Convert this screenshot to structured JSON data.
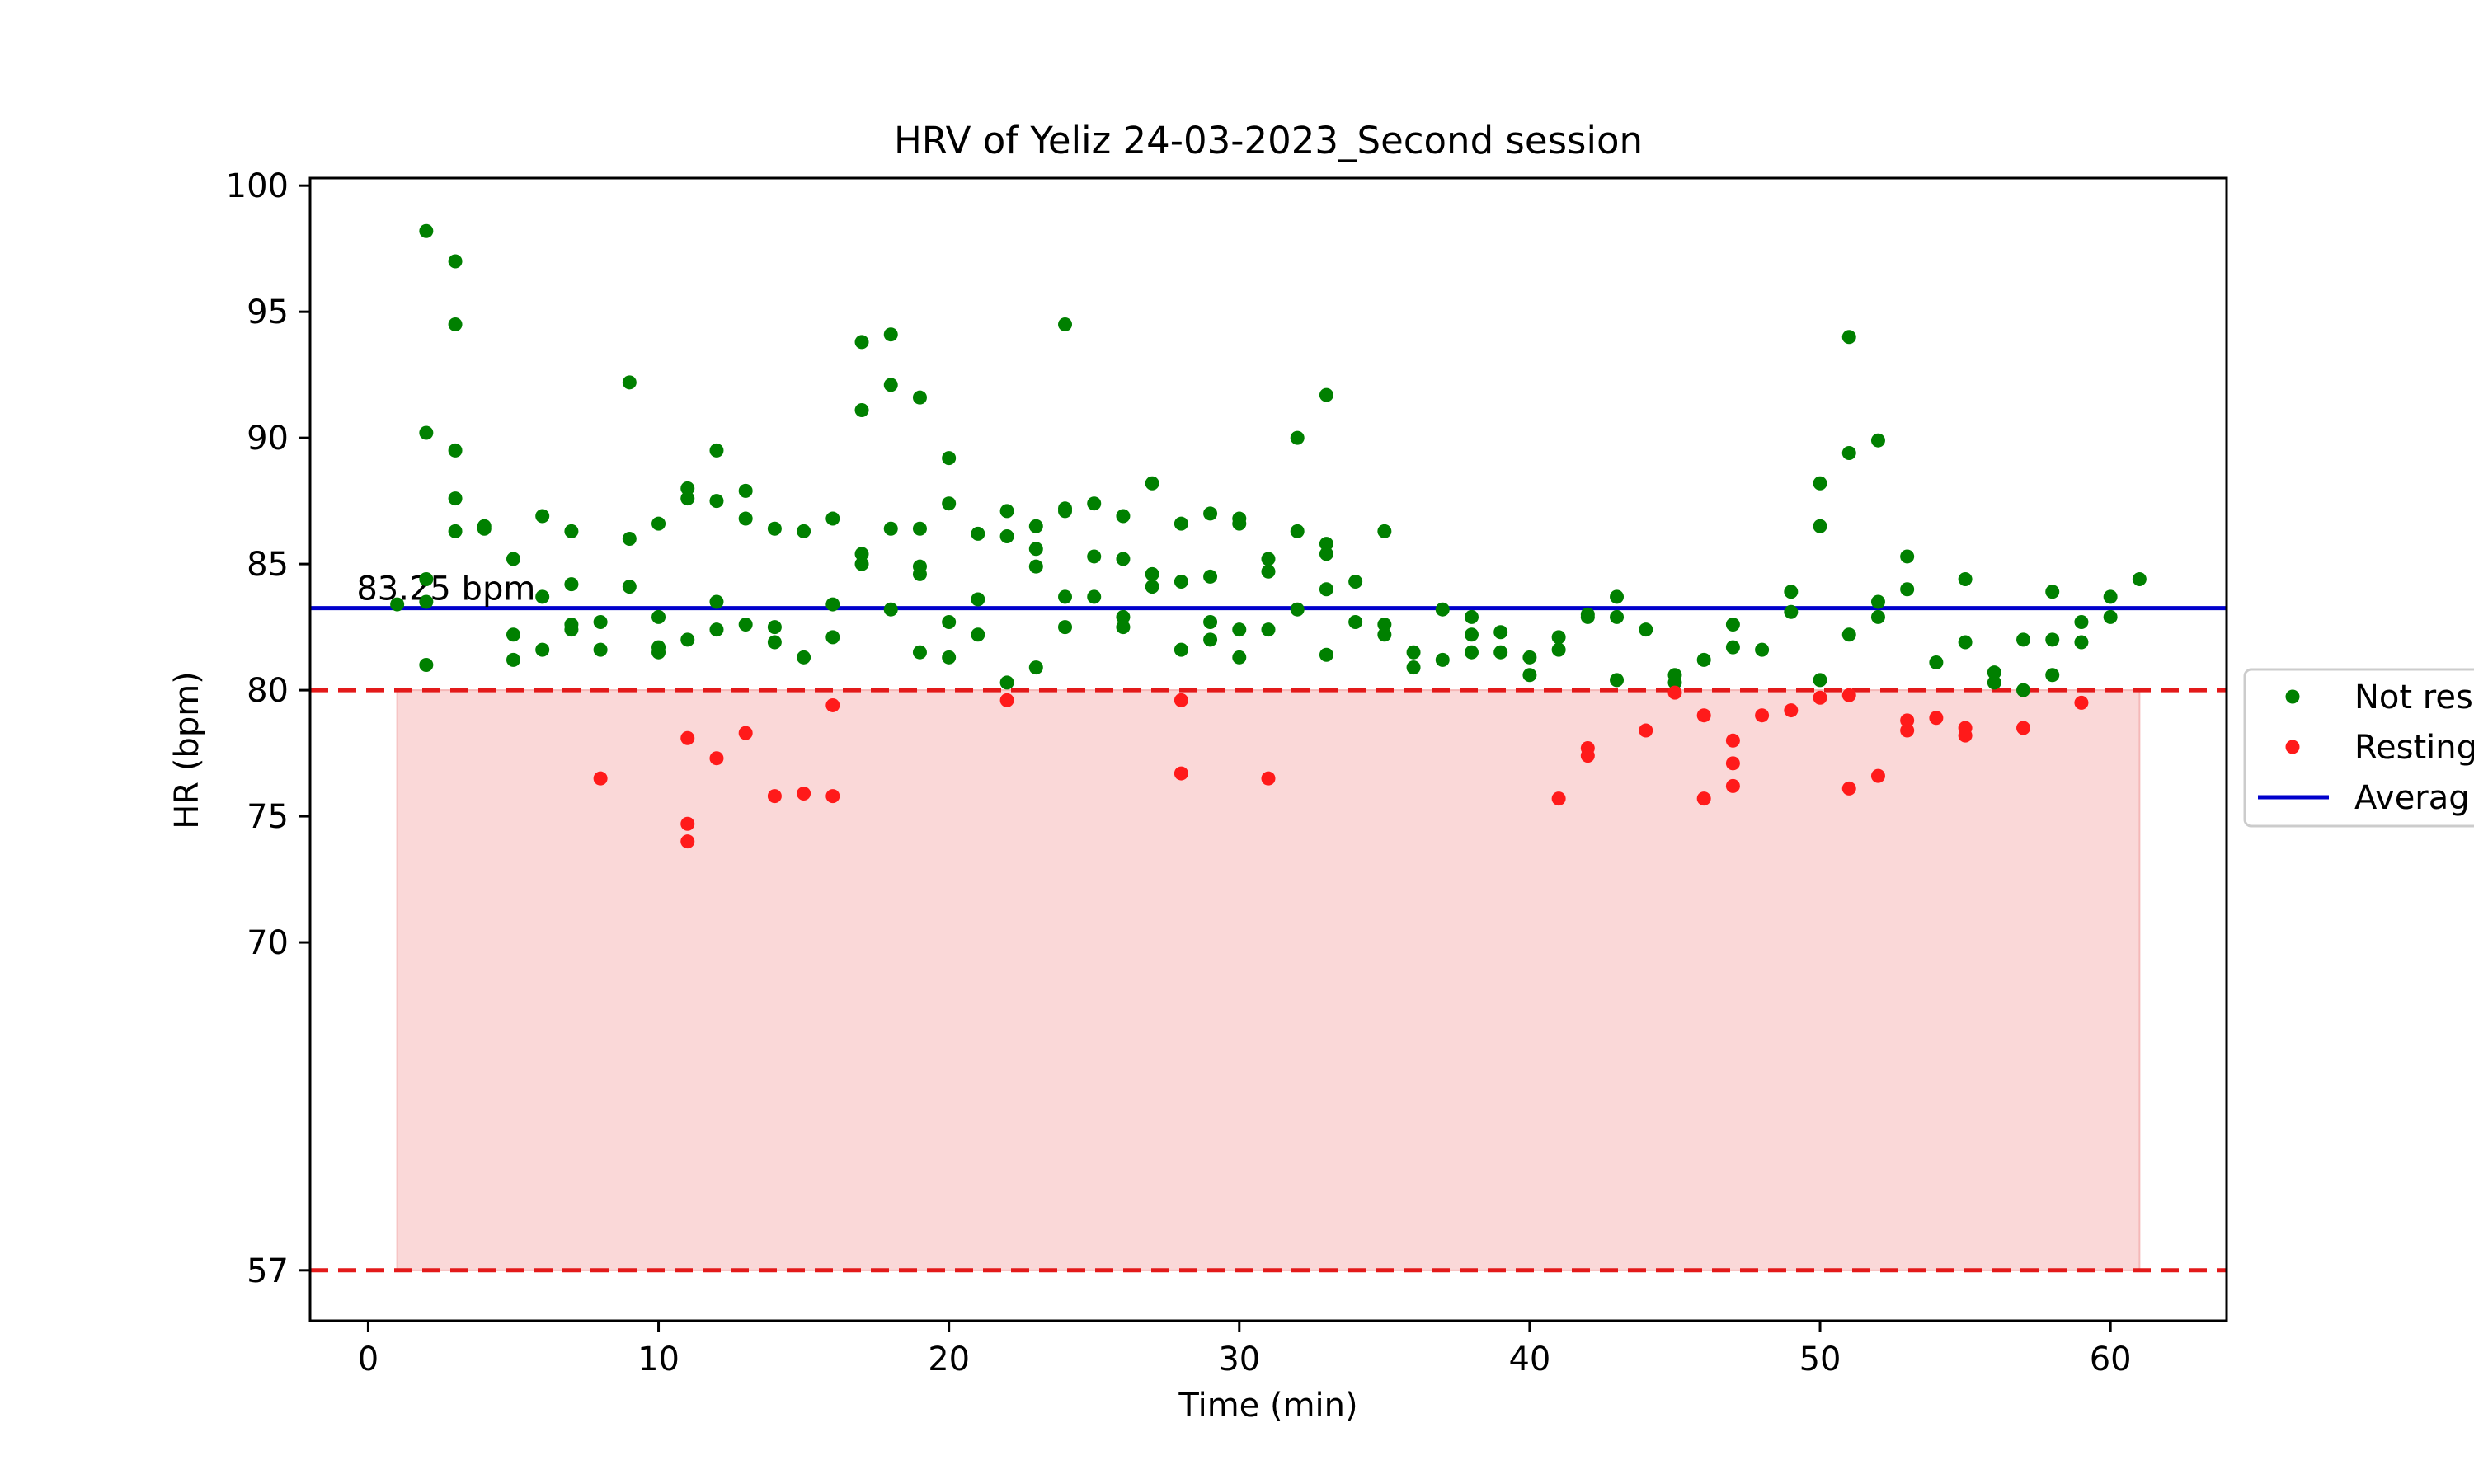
{
  "chart_data": {
    "type": "scatter",
    "title": "HRV of Yeliz 24-03-2023_Second session",
    "xlabel": "Time (min)",
    "ylabel": "HR (bpm)",
    "xlim": [
      -2,
      64
    ],
    "ylim": [
      55,
      100.3
    ],
    "xticks": [
      0,
      10,
      20,
      30,
      40,
      50,
      60
    ],
    "yticks": [
      57,
      70,
      75,
      80,
      85,
      90,
      95,
      100
    ],
    "legend_position": "right, partially cut off",
    "colors": {
      "not_resting": "#008000",
      "resting": "#ff1a1a",
      "average": "#0000cc",
      "threshold": "#e31a1a",
      "band": "#f5b8b8"
    },
    "average": {
      "value": 83.25,
      "label": "83.25 bpm"
    },
    "resting_band": {
      "x": [
        1,
        61
      ],
      "y": [
        57,
        80
      ]
    },
    "thresholds": [
      80,
      57
    ],
    "legend": [
      {
        "key": "not_resting",
        "label": "Not res",
        "marker": "dot"
      },
      {
        "key": "resting",
        "label": "Resting",
        "marker": "dot"
      },
      {
        "key": "average",
        "label": "Averag",
        "marker": "line"
      }
    ],
    "series": [
      {
        "name": "Not res",
        "key": "not_resting",
        "points": [
          [
            1,
            83.4
          ],
          [
            2,
            98.2
          ],
          [
            2,
            90.2
          ],
          [
            2,
            84.4
          ],
          [
            2,
            83.5
          ],
          [
            2,
            81
          ],
          [
            3,
            97
          ],
          [
            3,
            94.5
          ],
          [
            3,
            89.5
          ],
          [
            3,
            87.6
          ],
          [
            3,
            86.3
          ],
          [
            4,
            86.5
          ],
          [
            4,
            86.4
          ],
          [
            5,
            85.2
          ],
          [
            5,
            82.2
          ],
          [
            5,
            81.2
          ],
          [
            6,
            86.9
          ],
          [
            6,
            83.7
          ],
          [
            6,
            81.6
          ],
          [
            7,
            86.3
          ],
          [
            7,
            84.2
          ],
          [
            7,
            82.6
          ],
          [
            7,
            82.4
          ],
          [
            8,
            82.7
          ],
          [
            8,
            81.6
          ],
          [
            9,
            92.2
          ],
          [
            9,
            86
          ],
          [
            9,
            84.1
          ],
          [
            10,
            86.6
          ],
          [
            10,
            82.9
          ],
          [
            10,
            81.7
          ],
          [
            10,
            81.5
          ],
          [
            11,
            88
          ],
          [
            11,
            87.6
          ],
          [
            11,
            82
          ],
          [
            12,
            89.5
          ],
          [
            12,
            87.5
          ],
          [
            12,
            83.5
          ],
          [
            12,
            82.4
          ],
          [
            13,
            87.9
          ],
          [
            13,
            86.8
          ],
          [
            13,
            82.6
          ],
          [
            14,
            86.4
          ],
          [
            14,
            82.5
          ],
          [
            14,
            81.9
          ],
          [
            15,
            86.3
          ],
          [
            15,
            81.3
          ],
          [
            16,
            86.8
          ],
          [
            16,
            83.4
          ],
          [
            16,
            82.1
          ],
          [
            17,
            93.8
          ],
          [
            17,
            91.1
          ],
          [
            17,
            85.4
          ],
          [
            17,
            85
          ],
          [
            18,
            94.1
          ],
          [
            18,
            92.1
          ],
          [
            18,
            86.4
          ],
          [
            18,
            83.2
          ],
          [
            19,
            91.6
          ],
          [
            19,
            86.4
          ],
          [
            19,
            84.9
          ],
          [
            19,
            84.6
          ],
          [
            19,
            81.5
          ],
          [
            20,
            89.2
          ],
          [
            20,
            87.4
          ],
          [
            20,
            82.7
          ],
          [
            20,
            81.3
          ],
          [
            21,
            86.2
          ],
          [
            21,
            83.6
          ],
          [
            21,
            82.2
          ],
          [
            22,
            87.1
          ],
          [
            22,
            86.1
          ],
          [
            22,
            80.3
          ],
          [
            23,
            86.5
          ],
          [
            23,
            85.6
          ],
          [
            23,
            84.9
          ],
          [
            23,
            80.9
          ],
          [
            24,
            94.5
          ],
          [
            24,
            87.2
          ],
          [
            24,
            87.1
          ],
          [
            24,
            83.7
          ],
          [
            24,
            82.5
          ],
          [
            25,
            87.4
          ],
          [
            25,
            85.3
          ],
          [
            25,
            83.7
          ],
          [
            26,
            86.9
          ],
          [
            26,
            85.2
          ],
          [
            26,
            82.9
          ],
          [
            26,
            82.5
          ],
          [
            27,
            88.2
          ],
          [
            27,
            84.6
          ],
          [
            27,
            84.1
          ],
          [
            28,
            86.6
          ],
          [
            28,
            84.3
          ],
          [
            28,
            81.6
          ],
          [
            29,
            87
          ],
          [
            29,
            84.5
          ],
          [
            29,
            82.7
          ],
          [
            29,
            82
          ],
          [
            30,
            86.8
          ],
          [
            30,
            86.6
          ],
          [
            30,
            82.4
          ],
          [
            30,
            81.3
          ],
          [
            31,
            85.2
          ],
          [
            31,
            84.7
          ],
          [
            31,
            82.4
          ],
          [
            32,
            90
          ],
          [
            32,
            86.3
          ],
          [
            32,
            83.2
          ],
          [
            33,
            91.7
          ],
          [
            33,
            85.8
          ],
          [
            33,
            85.4
          ],
          [
            33,
            84
          ],
          [
            33,
            81.4
          ],
          [
            34,
            84.3
          ],
          [
            34,
            82.7
          ],
          [
            35,
            86.3
          ],
          [
            35,
            82.6
          ],
          [
            35,
            82.2
          ],
          [
            36,
            81.5
          ],
          [
            36,
            80.9
          ],
          [
            37,
            83.2
          ],
          [
            37,
            81.2
          ],
          [
            38,
            82.9
          ],
          [
            38,
            82.2
          ],
          [
            38,
            81.5
          ],
          [
            39,
            82.3
          ],
          [
            39,
            81.5
          ],
          [
            40,
            81.3
          ],
          [
            40,
            80.6
          ],
          [
            41,
            82.1
          ],
          [
            41,
            81.6
          ],
          [
            42,
            83
          ],
          [
            42,
            82.9
          ],
          [
            43,
            83.7
          ],
          [
            43,
            82.9
          ],
          [
            43,
            80.4
          ],
          [
            44,
            82.4
          ],
          [
            45,
            80.6
          ],
          [
            45,
            80.3
          ],
          [
            46,
            81.2
          ],
          [
            47,
            82.6
          ],
          [
            47,
            81.7
          ],
          [
            48,
            81.6
          ],
          [
            49,
            83.9
          ],
          [
            49,
            83.1
          ],
          [
            50,
            88.2
          ],
          [
            50,
            86.5
          ],
          [
            50,
            80.4
          ],
          [
            51,
            94
          ],
          [
            51,
            89.4
          ],
          [
            51,
            82.2
          ],
          [
            52,
            89.9
          ],
          [
            52,
            83.5
          ],
          [
            52,
            82.9
          ],
          [
            53,
            85.3
          ],
          [
            53,
            84
          ],
          [
            54,
            81.1
          ],
          [
            55,
            84.4
          ],
          [
            55,
            81.9
          ],
          [
            56,
            80.7
          ],
          [
            56,
            80.3
          ],
          [
            57,
            82
          ],
          [
            57,
            80
          ],
          [
            58,
            83.9
          ],
          [
            58,
            82
          ],
          [
            58,
            80.6
          ],
          [
            59,
            82.7
          ],
          [
            59,
            81.9
          ],
          [
            60,
            83.7
          ],
          [
            60,
            82.9
          ],
          [
            61,
            84.4
          ]
        ]
      },
      {
        "name": "Resting",
        "key": "resting",
        "points": [
          [
            8,
            76.5
          ],
          [
            11,
            78.1
          ],
          [
            11,
            74.7
          ],
          [
            11,
            74
          ],
          [
            12,
            77.3
          ],
          [
            13,
            78.3
          ],
          [
            14,
            75.8
          ],
          [
            15,
            75.9
          ],
          [
            16,
            79.4
          ],
          [
            16,
            75.8
          ],
          [
            22,
            79.6
          ],
          [
            28,
            79.6
          ],
          [
            28,
            76.7
          ],
          [
            31,
            76.5
          ],
          [
            41,
            75.7
          ],
          [
            42,
            77.7
          ],
          [
            42,
            77.4
          ],
          [
            44,
            78.4
          ],
          [
            45,
            79.9
          ],
          [
            46,
            79
          ],
          [
            46,
            75.7
          ],
          [
            47,
            78
          ],
          [
            47,
            77.1
          ],
          [
            47,
            76.2
          ],
          [
            48,
            79
          ],
          [
            49,
            79.2
          ],
          [
            50,
            79.7
          ],
          [
            51,
            79.8
          ],
          [
            51,
            76.1
          ],
          [
            52,
            76.6
          ],
          [
            53,
            78.8
          ],
          [
            53,
            78.4
          ],
          [
            54,
            78.9
          ],
          [
            55,
            78.5
          ],
          [
            55,
            78.2
          ],
          [
            57,
            78.5
          ],
          [
            59,
            79.5
          ]
        ]
      }
    ]
  }
}
